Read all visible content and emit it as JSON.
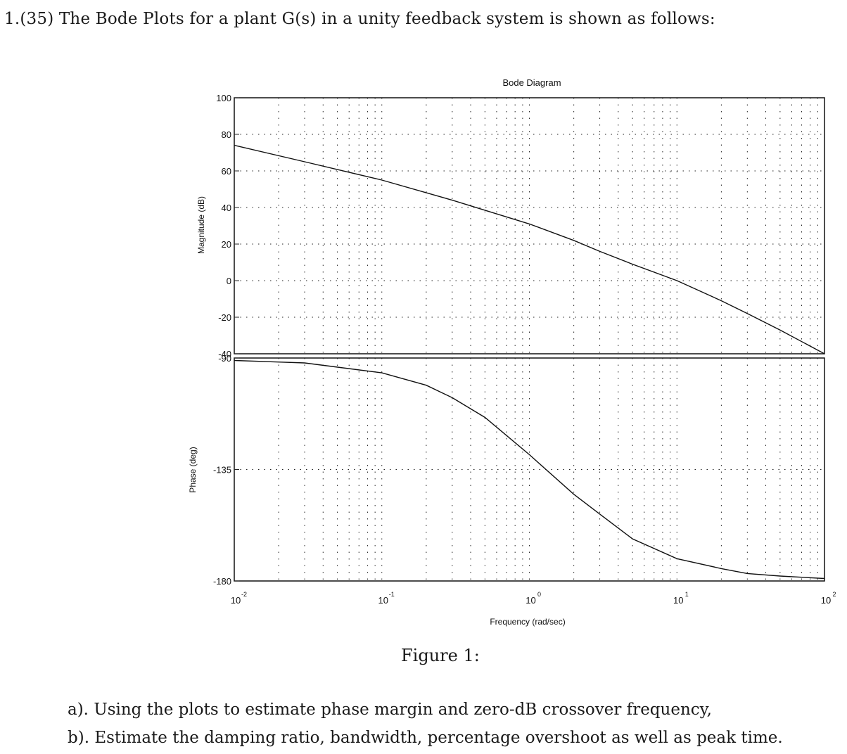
{
  "question": {
    "number": "1.",
    "points": "(35)",
    "text": "The Bode Plots for a plant G(s) in a unity feedback system is shown as follows:"
  },
  "figure": {
    "caption": "Figure 1:"
  },
  "parts": [
    {
      "label": "a).",
      "text": "Using the plots to estimate phase margin and zero-dB crossover frequency,"
    },
    {
      "label": "b).",
      "text": "Estimate the damping ratio, bandwidth, percentage overshoot as well as peak time."
    }
  ],
  "chart_data": [
    {
      "type": "line",
      "title": "Bode Diagram",
      "xlabel": "Frequency (rad/sec)",
      "ylabel": "Magnitude (dB)",
      "xscale": "log",
      "xlim": [
        0.01,
        100
      ],
      "ylim": [
        -40,
        100
      ],
      "xticks": [
        "10^-2",
        "10^-1",
        "10^0",
        "10^1",
        "10^2"
      ],
      "yticks": [
        100,
        80,
        60,
        40,
        20,
        0,
        -20,
        -40
      ],
      "grid": true,
      "x": [
        0.01,
        0.03,
        0.1,
        0.3,
        1,
        2,
        3,
        5,
        10,
        20,
        30,
        50,
        100
      ],
      "series": [
        {
          "name": "Magnitude",
          "values": [
            74,
            65,
            55,
            44,
            31,
            22,
            16,
            9,
            0,
            -11,
            -18,
            -27,
            -40
          ]
        }
      ]
    },
    {
      "type": "line",
      "title": "",
      "xlabel": "Frequency (rad/sec)",
      "ylabel": "Phase (deg)",
      "xscale": "log",
      "xlim": [
        0.01,
        100
      ],
      "ylim": [
        -180,
        -90
      ],
      "xticks": [
        "10^-2",
        "10^-1",
        "10^0",
        "10^1",
        "10^2"
      ],
      "yticks": [
        -90,
        -135,
        -180
      ],
      "grid": true,
      "x": [
        0.01,
        0.03,
        0.1,
        0.2,
        0.3,
        0.5,
        1,
        2,
        3,
        5,
        10,
        20,
        30,
        50,
        100
      ],
      "series": [
        {
          "name": "Phase",
          "values": [
            -91,
            -92,
            -96,
            -101,
            -106,
            -114,
            -129,
            -145,
            -153,
            -163,
            -171,
            -175,
            -177,
            -178,
            -179
          ]
        }
      ]
    }
  ],
  "plot_labels": {
    "title": "Bode Diagram",
    "mag_ylabel": "Magnitude (dB)",
    "phase_ylabel": "Phase (deg)",
    "xlabel": "Frequency (rad/sec)",
    "mag_ticks": [
      "100",
      "80",
      "60",
      "40",
      "20",
      "0",
      "-20",
      "-40"
    ],
    "phase_ticks": [
      "-90",
      "-135",
      "-180"
    ],
    "x_tick_base": "10",
    "x_tick_exps": [
      "-2",
      "-1",
      "0",
      "1",
      "2"
    ]
  }
}
